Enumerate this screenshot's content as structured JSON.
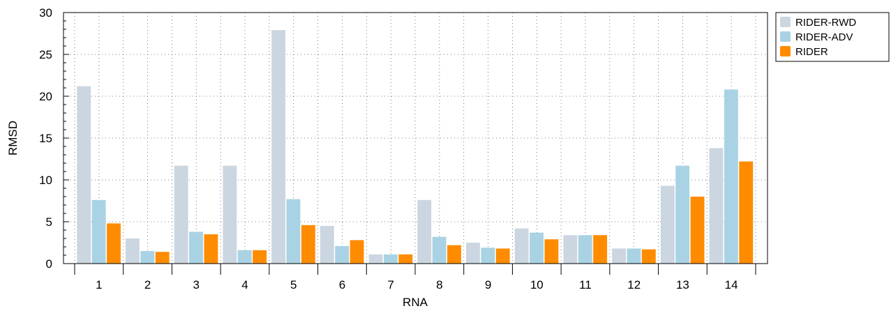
{
  "chart_data": {
    "type": "bar",
    "xlabel": "RNA",
    "ylabel": "RMSD",
    "ylim": [
      0,
      30
    ],
    "yticks": [
      0,
      5,
      10,
      15,
      20,
      25,
      30
    ],
    "grid": true,
    "legend_position": "outside-top-right",
    "categories": [
      "1",
      "2",
      "3",
      "4",
      "5",
      "6",
      "7",
      "8",
      "9",
      "10",
      "11",
      "12",
      "13",
      "14"
    ],
    "series": [
      {
        "name": "RIDER-RWD",
        "color": "#cbd6e1",
        "values": [
          21.2,
          3.0,
          11.7,
          11.7,
          27.9,
          4.5,
          1.1,
          7.6,
          2.5,
          4.2,
          3.4,
          1.8,
          9.3,
          13.8
        ]
      },
      {
        "name": "RIDER-ADV",
        "color": "#a9d3e4",
        "values": [
          7.6,
          1.5,
          3.8,
          1.6,
          7.7,
          2.1,
          1.1,
          3.2,
          1.9,
          3.7,
          3.4,
          1.8,
          11.7,
          20.8
        ]
      },
      {
        "name": "RIDER",
        "color": "#ff8c00",
        "values": [
          4.8,
          1.4,
          3.5,
          1.6,
          4.6,
          2.8,
          1.1,
          2.2,
          1.8,
          2.9,
          3.4,
          1.7,
          8.0,
          12.2
        ]
      }
    ]
  }
}
